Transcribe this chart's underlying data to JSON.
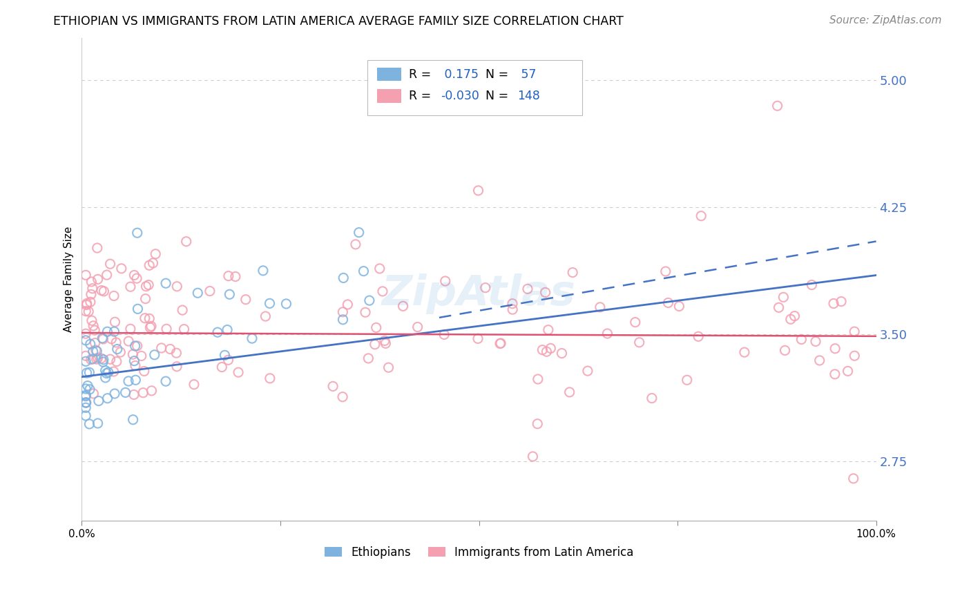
{
  "title": "ETHIOPIAN VS IMMIGRANTS FROM LATIN AMERICA AVERAGE FAMILY SIZE CORRELATION CHART",
  "source": "Source: ZipAtlas.com",
  "ylabel": "Average Family Size",
  "yticks": [
    2.75,
    3.5,
    4.25,
    5.0
  ],
  "ymin": 2.4,
  "ymax": 5.25,
  "xmin": 0.0,
  "xmax": 1.0,
  "r_ethiopian": 0.175,
  "n_ethiopian": 57,
  "r_latin": -0.03,
  "n_latin": 148,
  "color_ethiopian": "#7EB3E0",
  "color_latin": "#F4A0B0",
  "color_trendline_ethiopian": "#4472C4",
  "color_trendline_latin": "#E05070",
  "color_text_blue": "#2060C0",
  "color_yticks": "#4472C4",
  "background_color": "#FFFFFF",
  "title_fontsize": 12.5,
  "source_fontsize": 11,
  "axis_label_fontsize": 11
}
